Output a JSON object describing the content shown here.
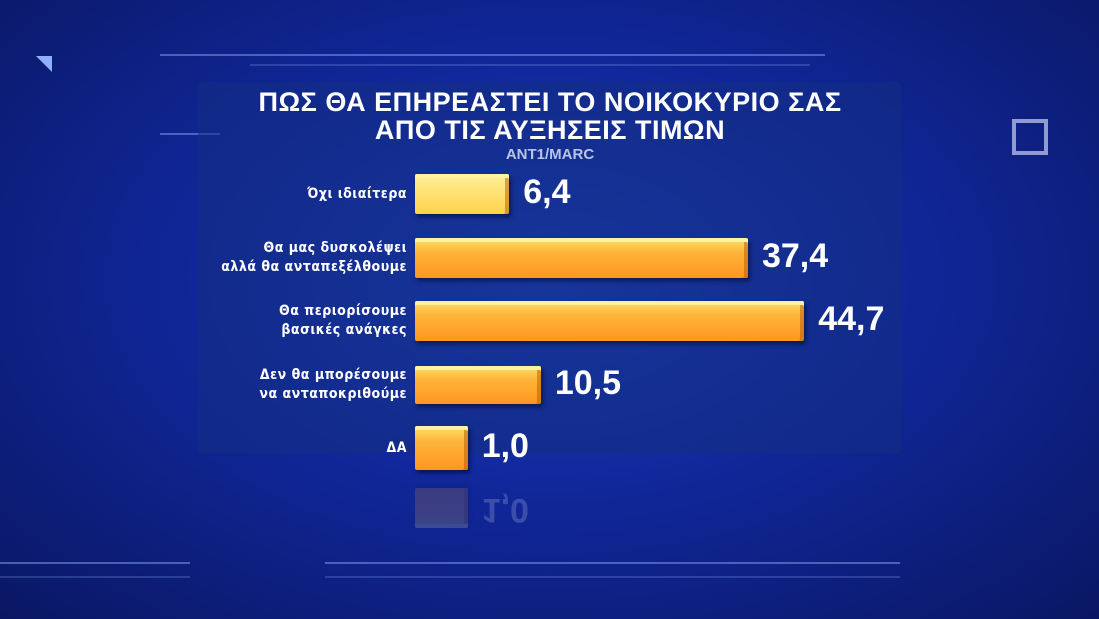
{
  "chart_data": {
    "type": "bar",
    "orientation": "horizontal",
    "title": "ΠΩΣ ΘΑ ΕΠΗΡΕΑΣΤΕΙ ΤΟ ΝΟΙΚΟΚΥΡΙΟ ΣΑΣ ΑΠΟ ΤΙΣ ΑΥΞΗΣΕΙΣ ΤΙΜΩΝ",
    "title_lines": [
      "ΠΩΣ ΘΑ ΕΠΗΡΕΑΣΤΕΙ ΤΟ ΝΟΙΚΟΚΥΡΙΟ ΣΑΣ",
      "ΑΠΟ ΤΙΣ ΑΥΞΗΣΕΙΣ ΤΙΜΩΝ"
    ],
    "source": "ANT1/MARC",
    "categories": [
      [
        "Όχι ιδιαίτερα"
      ],
      [
        "Θα μας δυσκολέψει",
        "αλλά θα ανταπεξέλθουμε"
      ],
      [
        "Θα περιορίσουμε",
        "βασικές ανάγκες"
      ],
      [
        "Δεν θα μπορέσουμε",
        "να ανταποκριθούμε"
      ],
      [
        "ΔΑ"
      ]
    ],
    "values": [
      6.4,
      37.4,
      44.7,
      10.5,
      1.0
    ],
    "value_labels": [
      "6,4",
      "37,4",
      "44,7",
      "10,5",
      "1,0"
    ],
    "bar_color": "#ff9e28",
    "grid": false
  }
}
